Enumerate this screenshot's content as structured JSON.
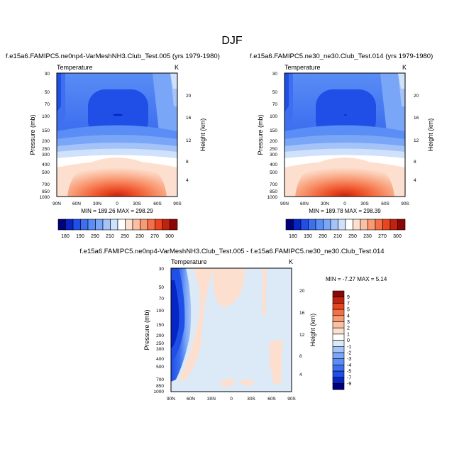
{
  "chart_data": [
    {
      "type": "heatmap",
      "title": "DJF",
      "subtitle": "f.e15a6.FAMIPC5.ne0np4-VarMeshNH3.Club_Test.005 (yrs 1979-1980)",
      "variable": "Temperature",
      "units": "K",
      "ylabel": "Pressure (mb)",
      "ylabel_right": "Height (km)",
      "x_ticks": [
        "90N",
        "60N",
        "30N",
        "0",
        "30S",
        "60S",
        "90S"
      ],
      "y_ticks": [
        "30",
        "50",
        "70",
        "100",
        "150",
        "200",
        "250",
        "300",
        "400",
        "500",
        "700",
        "850",
        "1000"
      ],
      "y_ticks_right": [
        "20",
        "16",
        "12",
        "8",
        "4"
      ],
      "stats": "MIN = 189.26  MAX = 298.29",
      "levels": [
        180,
        190,
        200,
        210,
        220,
        230,
        240,
        250,
        260,
        270,
        280,
        290,
        300
      ],
      "colorbar_labels": [
        "180",
        "190",
        "210",
        "230",
        "250",
        "270",
        "290",
        "300"
      ],
      "colors": [
        "#00007a",
        "#0625c5",
        "#1f4fe6",
        "#3d6ff0",
        "#5a8df5",
        "#7aa6f7",
        "#a4c3f9",
        "#cfe1fb",
        "#ffffff",
        "#fddfcf",
        "#fbbfa2",
        "#f89a74",
        "#f46f46",
        "#e84521",
        "#c2220d",
        "#8a0707"
      ]
    },
    {
      "type": "heatmap",
      "subtitle": "f.e15a6.FAMIPC5.ne30_ne30.Club_Test.014 (yrs 1979-1980)",
      "variable": "Temperature",
      "units": "K",
      "ylabel": "Pressure (mb)",
      "ylabel_right": "Height (km)",
      "stats": "MIN = 189.78  MAX = 298.39"
    },
    {
      "type": "heatmap",
      "subtitle": "f.e15a6.FAMIPC5.ne0np4-VarMeshNH3.Club_Test.005 - f.e15a6.FAMIPC5.ne30_ne30.Club_Test.014",
      "variable": "Temperature",
      "units": "K",
      "ylabel": "Pressure (mb)",
      "ylabel_right": "Height (km)",
      "stats": "MIN = -7.27  MAX =  5.14",
      "levels": [
        -9,
        -7,
        -5,
        -4,
        -3,
        -2,
        -1,
        0,
        1,
        2,
        3,
        4,
        5,
        7,
        9
      ],
      "colorbar_labels": [
        "9",
        "7",
        "5",
        "4",
        "3",
        "2",
        "1",
        "0",
        "-1",
        "-2",
        "-3",
        "-4",
        "-5",
        "-7",
        "-9"
      ],
      "colors": [
        "#8a0707",
        "#c2220d",
        "#e84521",
        "#f46f46",
        "#f89a74",
        "#fbbfa2",
        "#fddfcf",
        "#ffffff",
        "#dceaf8",
        "#a4c3f9",
        "#7aa6f7",
        "#5a8df5",
        "#3d6ff0",
        "#1f4fe6",
        "#0625c5",
        "#00007a"
      ]
    }
  ]
}
